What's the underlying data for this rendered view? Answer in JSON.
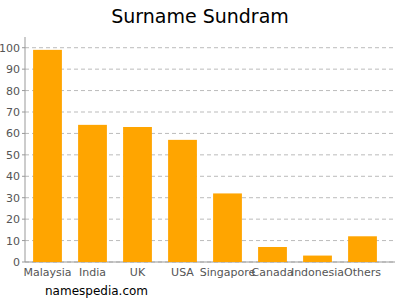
{
  "chart_data": {
    "type": "bar",
    "title": "Surname Sundram",
    "categories": [
      "Malaysia",
      "India",
      "UK",
      "USA",
      "Singapore",
      "Canada",
      "Indonesia",
      "Others"
    ],
    "values": [
      99,
      64,
      63,
      57,
      32,
      7,
      3,
      12
    ],
    "color": "#ffa500",
    "ylim": [
      0,
      105
    ],
    "yticks": [
      0,
      10,
      20,
      30,
      40,
      50,
      60,
      70,
      80,
      90,
      100
    ],
    "grid": true,
    "annotation": "namespedia.com"
  }
}
